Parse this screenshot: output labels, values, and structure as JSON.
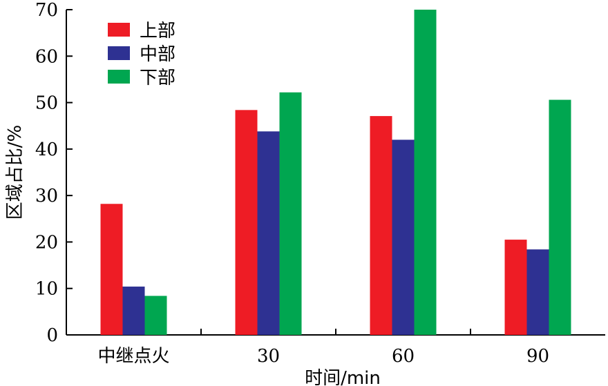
{
  "chart_data": {
    "type": "bar",
    "xlabel": "时间/min",
    "ylabel": "区域占比/%",
    "ylim": [
      0,
      70
    ],
    "yticks": [
      0,
      10,
      20,
      30,
      40,
      50,
      60,
      70
    ],
    "categories": [
      "中继点火",
      "30",
      "60",
      "90"
    ],
    "series": [
      {
        "name": "上部",
        "color": "#ee1c25",
        "values": [
          28.2,
          48.4,
          47.1,
          20.5
        ]
      },
      {
        "name": "中部",
        "color": "#2e3192",
        "values": [
          10.4,
          43.8,
          42.0,
          18.4
        ]
      },
      {
        "name": "下部",
        "color": "#00a650",
        "values": [
          8.4,
          52.2,
          70.0,
          50.6
        ]
      }
    ],
    "legend_position": "top-left",
    "grid": false
  }
}
